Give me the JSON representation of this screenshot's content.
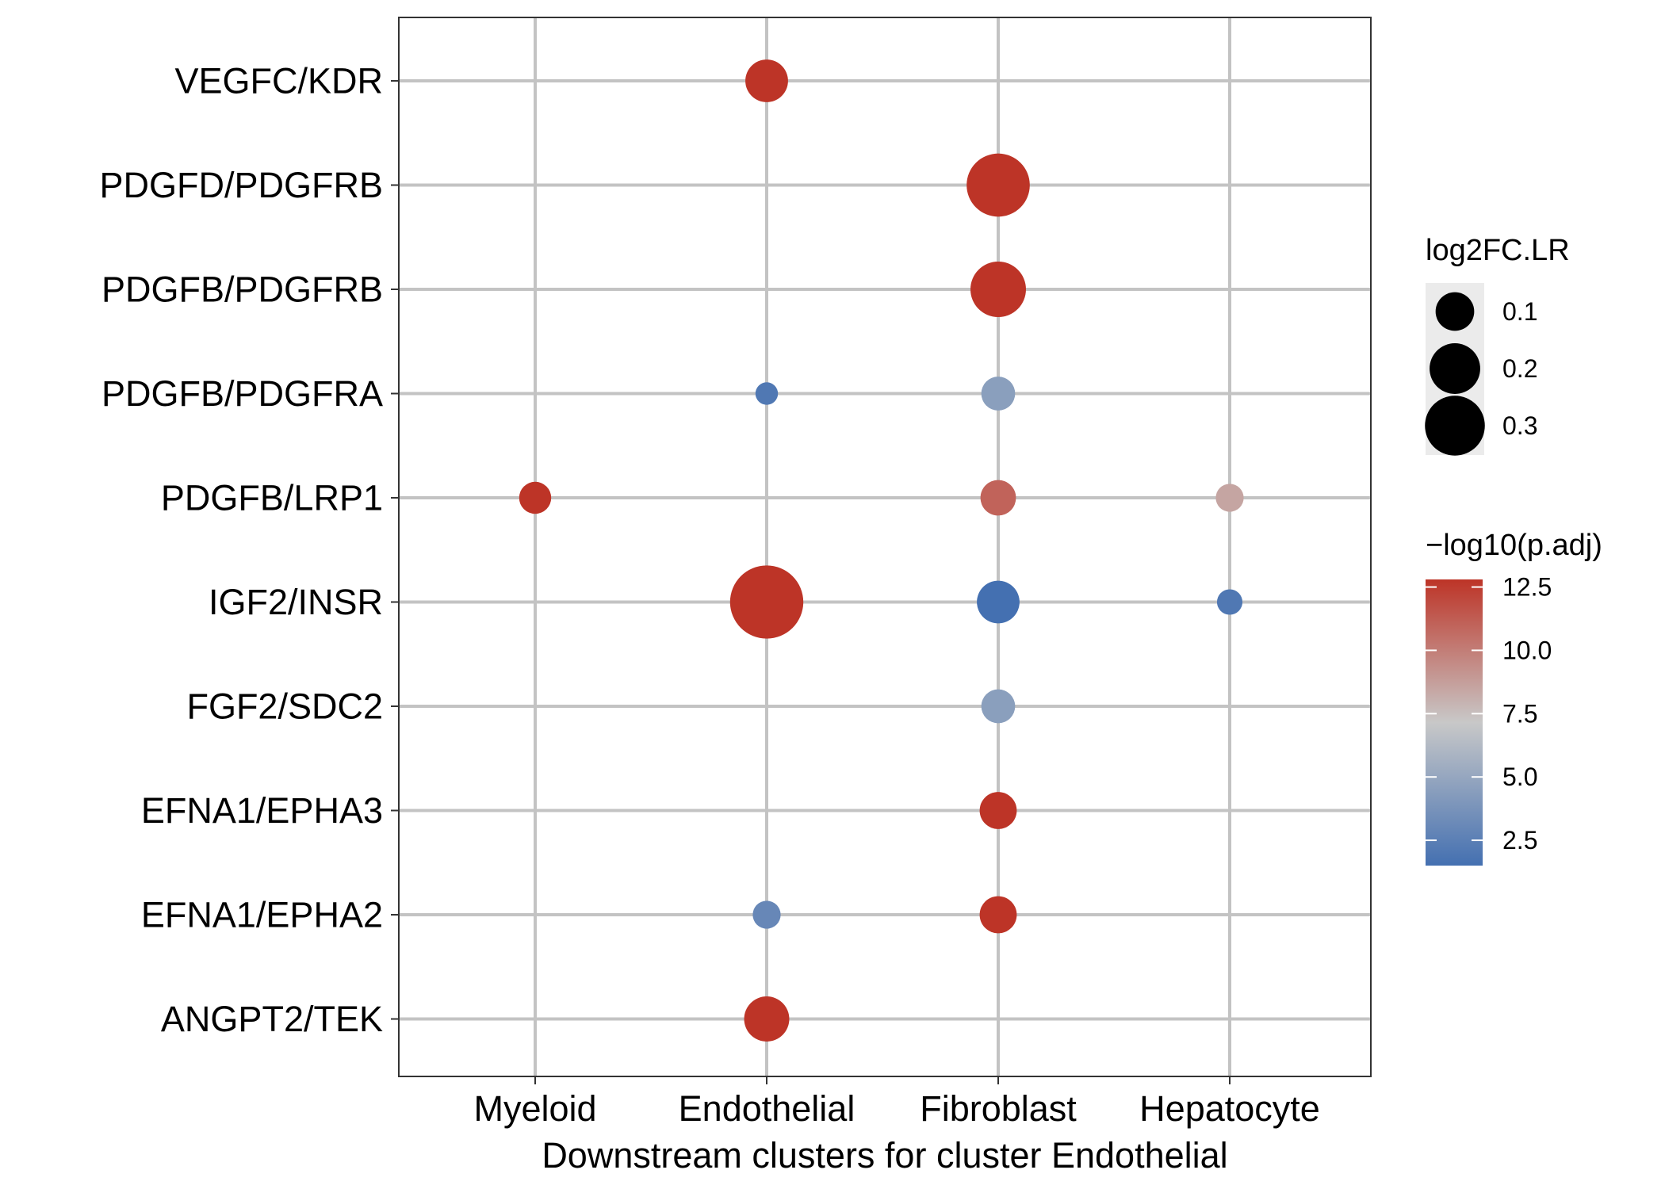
{
  "chart_data": {
    "type": "scatter",
    "xlabel": "Downstream clusters for cluster Endothelial",
    "ylabel": "",
    "categories_x": [
      "Myeloid",
      "Endothelial",
      "Fibroblast",
      "Hepatocyte"
    ],
    "categories_y": [
      "VEGFC/KDR",
      "PDGFD/PDGFRB",
      "PDGFB/PDGFRB",
      "PDGFB/PDGFRA",
      "PDGFB/LRP1",
      "IGF2/INSR",
      "FGF2/SDC2",
      "EFNA1/EPHA3",
      "EFNA1/EPHA2",
      "ANGPT2/TEK"
    ],
    "points": [
      {
        "x": "Endothelial",
        "y": "VEGFC/KDR",
        "log2FC_LR": 0.13,
        "neg_log10_padj": 12.8
      },
      {
        "x": "Fibroblast",
        "y": "PDGFD/PDGFRB",
        "log2FC_LR": 0.34,
        "neg_log10_padj": 12.8
      },
      {
        "x": "Fibroblast",
        "y": "PDGFB/PDGFRB",
        "log2FC_LR": 0.25,
        "neg_log10_padj": 12.8
      },
      {
        "x": "Endothelial",
        "y": "PDGFB/PDGFRA",
        "log2FC_LR": 0.02,
        "neg_log10_padj": 2.0
      },
      {
        "x": "Fibroblast",
        "y": "PDGFB/PDGFRA",
        "log2FC_LR": 0.07,
        "neg_log10_padj": 4.5
      },
      {
        "x": "Myeloid",
        "y": "PDGFB/LRP1",
        "log2FC_LR": 0.06,
        "neg_log10_padj": 12.8
      },
      {
        "x": "Fibroblast",
        "y": "PDGFB/LRP1",
        "log2FC_LR": 0.08,
        "neg_log10_padj": 11.0
      },
      {
        "x": "Hepatocyte",
        "y": "PDGFB/LRP1",
        "log2FC_LR": 0.04,
        "neg_log10_padj": 8.5
      },
      {
        "x": "Endothelial",
        "y": "IGF2/INSR",
        "log2FC_LR": 0.48,
        "neg_log10_padj": 12.8
      },
      {
        "x": "Fibroblast",
        "y": "IGF2/INSR",
        "log2FC_LR": 0.13,
        "neg_log10_padj": 1.5
      },
      {
        "x": "Hepatocyte",
        "y": "IGF2/INSR",
        "log2FC_LR": 0.03,
        "neg_log10_padj": 2.0
      },
      {
        "x": "Fibroblast",
        "y": "FGF2/SDC2",
        "log2FC_LR": 0.07,
        "neg_log10_padj": 4.5
      },
      {
        "x": "Fibroblast",
        "y": "EFNA1/EPHA3",
        "log2FC_LR": 0.09,
        "neg_log10_padj": 12.8
      },
      {
        "x": "Endothelial",
        "y": "EFNA1/EPHA2",
        "log2FC_LR": 0.04,
        "neg_log10_padj": 3.0
      },
      {
        "x": "Fibroblast",
        "y": "EFNA1/EPHA2",
        "log2FC_LR": 0.09,
        "neg_log10_padj": 12.8
      },
      {
        "x": "Endothelial",
        "y": "ANGPT2/TEK",
        "log2FC_LR": 0.15,
        "neg_log10_padj": 12.8
      }
    ],
    "grid": true,
    "size_legend": {
      "title": "log2FC.LR",
      "values": [
        0.1,
        0.2,
        0.3
      ],
      "labels": [
        "0.1",
        "0.2",
        "0.3"
      ]
    },
    "color_legend": {
      "title": "−log10(p.adj)",
      "range": [
        1.5,
        12.8
      ],
      "ticks": [
        2.5,
        5.0,
        7.5,
        10.0,
        12.5
      ],
      "tick_labels": [
        "2.5",
        "5.0",
        "7.5",
        "10.0",
        "12.5"
      ],
      "low_color": "#4470b1",
      "mid_color": "#c8c8c8",
      "high_color": "#bd3427"
    }
  }
}
